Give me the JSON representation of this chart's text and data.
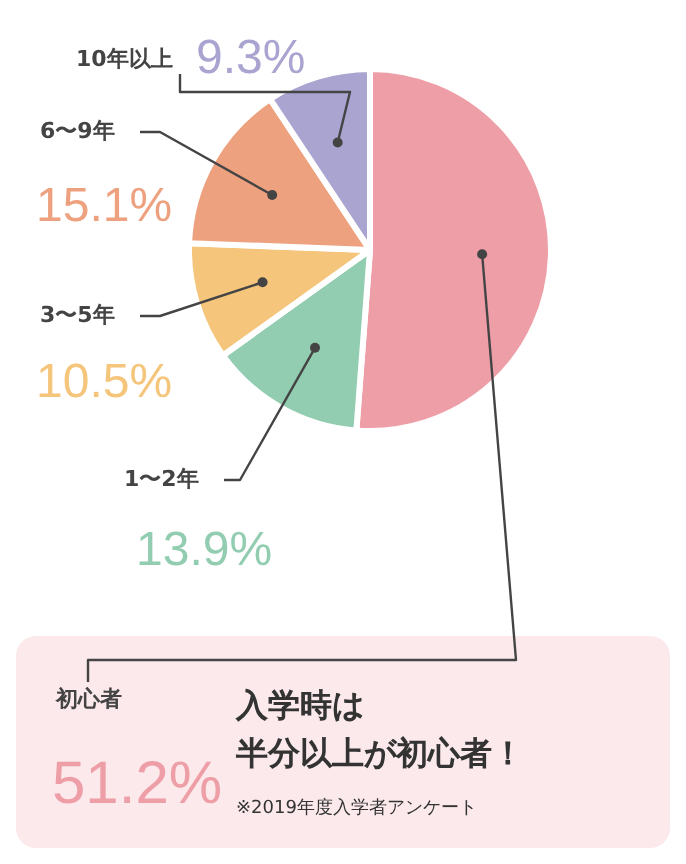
{
  "chart_data": {
    "type": "pie",
    "categories": [
      "初心者",
      "1〜2年",
      "3〜5年",
      "6〜9年",
      "10年以上"
    ],
    "values": [
      51.2,
      13.9,
      10.5,
      15.1,
      9.3
    ],
    "value_labels": [
      "51.2%",
      "13.9%",
      "10.5%",
      "15.1%",
      "9.3%"
    ],
    "colors": [
      "#ee9ea6",
      "#93cdb1",
      "#f4c57b",
      "#eea17f",
      "#a9a4d0"
    ],
    "annotations": [
      "入学時は",
      "半分以上が初心者！",
      "※2019年度入学者アンケート"
    ],
    "legend": false
  }
}
